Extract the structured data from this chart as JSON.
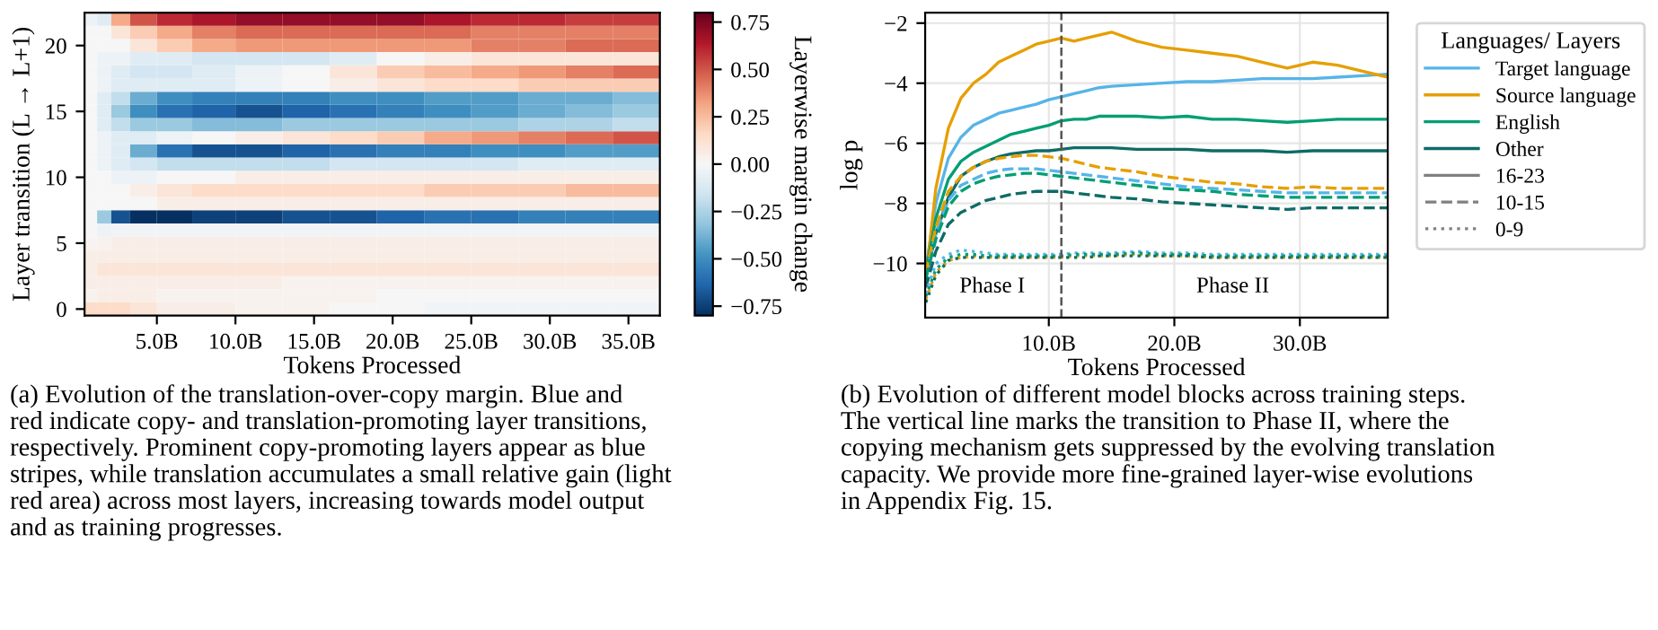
{
  "chart_data": [
    {
      "type": "heatmap",
      "xlabel": "Tokens Processed",
      "ylabel": "Layer transition (L → L+1)",
      "clabel": "Layerwise margin change",
      "x": [
        0.8,
        1.6,
        2.6,
        4,
        6,
        8.5,
        11.5,
        14.5,
        17.5,
        20.5,
        23.5,
        26.5,
        29.5,
        32.5,
        35.5
      ],
      "xlim": [
        0.4,
        37
      ],
      "xticks": [
        {
          "value": 5,
          "label": "5.0B"
        },
        {
          "value": 10,
          "label": "10.0B"
        },
        {
          "value": 15,
          "label": "15.0B"
        },
        {
          "value": 20,
          "label": "20.0B"
        },
        {
          "value": 25,
          "label": "25.0B"
        },
        {
          "value": 30,
          "label": "30.0B"
        },
        {
          "value": 35,
          "label": "35.0B"
        }
      ],
      "y_categories": [
        null,
        null,
        "20",
        null,
        null,
        null,
        null,
        "15",
        null,
        null,
        null,
        null,
        "10",
        null,
        null,
        null,
        null,
        "5",
        null,
        null,
        null,
        null,
        "0"
      ],
      "cells": [
        [
          -0.05,
          -0.1,
          0.3,
          0.5,
          0.6,
          0.65,
          0.7,
          0.7,
          0.7,
          0.7,
          0.65,
          0.6,
          0.6,
          0.55,
          0.55
        ],
        [
          0,
          0,
          0.1,
          0.2,
          0.3,
          0.4,
          0.45,
          0.45,
          0.45,
          0.45,
          0.45,
          0.4,
          0.4,
          0.4,
          0.4
        ],
        [
          0,
          0,
          0,
          0.1,
          0.2,
          0.3,
          0.35,
          0.35,
          0.35,
          0.35,
          0.35,
          0.4,
          0.4,
          0.45,
          0.45
        ],
        [
          0,
          -0.05,
          -0.05,
          -0.1,
          -0.1,
          -0.15,
          -0.15,
          -0.15,
          -0.1,
          0,
          0.05,
          0.1,
          0.1,
          0.1,
          0.1
        ],
        [
          0,
          -0.05,
          -0.1,
          -0.15,
          -0.15,
          -0.1,
          -0.05,
          0,
          0.1,
          0.2,
          0.25,
          0.3,
          0.35,
          0.4,
          0.45
        ],
        [
          0,
          -0.05,
          -0.1,
          -0.1,
          -0.1,
          -0.1,
          -0.05,
          0,
          0.05,
          0.1,
          0.15,
          0.15,
          0.2,
          0.2,
          0.2
        ],
        [
          0,
          -0.1,
          -0.2,
          -0.4,
          -0.5,
          -0.55,
          -0.55,
          -0.55,
          -0.5,
          -0.5,
          -0.45,
          -0.45,
          -0.4,
          -0.4,
          -0.35
        ],
        [
          0,
          -0.1,
          -0.3,
          -0.5,
          -0.6,
          -0.65,
          -0.7,
          -0.65,
          -0.6,
          -0.55,
          -0.5,
          -0.45,
          -0.4,
          -0.35,
          -0.3
        ],
        [
          0,
          -0.1,
          -0.2,
          -0.3,
          -0.3,
          -0.35,
          -0.35,
          -0.3,
          -0.3,
          -0.3,
          -0.3,
          -0.3,
          -0.25,
          -0.25,
          -0.2
        ],
        [
          0,
          -0.05,
          -0.1,
          -0.1,
          -0.05,
          0,
          0.05,
          0.1,
          0.15,
          0.2,
          0.3,
          0.35,
          0.4,
          0.45,
          0.5
        ],
        [
          0,
          -0.05,
          -0.1,
          -0.4,
          -0.6,
          -0.7,
          -0.7,
          -0.65,
          -0.6,
          -0.55,
          -0.55,
          -0.5,
          -0.5,
          -0.45,
          -0.45
        ],
        [
          0,
          -0.05,
          -0.1,
          -0.15,
          -0.2,
          -0.2,
          -0.2,
          -0.2,
          -0.15,
          -0.15,
          -0.15,
          -0.15,
          -0.1,
          -0.1,
          -0.1
        ],
        [
          0,
          0,
          -0.05,
          -0.05,
          0,
          0,
          0.05,
          0.05,
          0.05,
          0.05,
          0.05,
          0.05,
          0.05,
          0.05,
          0.05
        ],
        [
          0,
          0,
          0,
          0.05,
          0.1,
          0.15,
          0.15,
          0.15,
          0.15,
          0.15,
          0.2,
          0.2,
          0.2,
          0.25,
          0.25
        ],
        [
          0,
          0,
          0,
          0,
          0.05,
          0.05,
          0.05,
          0.05,
          0.05,
          0.05,
          0.05,
          0.05,
          0.05,
          0.05,
          0.05
        ],
        [
          0,
          -0.3,
          -0.7,
          -0.8,
          -0.8,
          -0.75,
          -0.75,
          -0.7,
          -0.7,
          -0.65,
          -0.6,
          -0.6,
          -0.55,
          -0.55,
          -0.55
        ],
        [
          0,
          -0.05,
          -0.03,
          -0.03,
          -0.03,
          -0.03,
          -0.03,
          -0.03,
          -0.03,
          -0.03,
          -0.03,
          -0.03,
          -0.03,
          -0.03,
          -0.03
        ],
        [
          0.02,
          0.03,
          0.05,
          0.05,
          0.05,
          0.05,
          0.05,
          0.05,
          0.05,
          0.05,
          0.05,
          0.05,
          0.05,
          0.05,
          0.05
        ],
        [
          0.05,
          0.05,
          0.05,
          0.05,
          0.05,
          0.05,
          0.05,
          0.05,
          0.05,
          0.05,
          0.05,
          0.05,
          0.05,
          0.05,
          0.05
        ],
        [
          0.05,
          0.1,
          0.1,
          0.1,
          0.1,
          0.1,
          0.1,
          0.1,
          0.1,
          0.1,
          0.1,
          0.1,
          0.1,
          0.1,
          0.1
        ],
        [
          0.05,
          0.05,
          0.05,
          0.05,
          0.05,
          0.05,
          0.05,
          0.03,
          0.03,
          0.03,
          0.03,
          0.03,
          0.03,
          0.03,
          0.03
        ],
        [
          0.03,
          0.05,
          0.05,
          0.05,
          0.03,
          0.03,
          0.03,
          0.03,
          0.03,
          0,
          0,
          0,
          0,
          0,
          0
        ],
        [
          0.15,
          0.15,
          0.15,
          0.1,
          0.05,
          0.05,
          0.03,
          0.03,
          0,
          0,
          -0.03,
          -0.03,
          -0.03,
          -0.03,
          -0.03
        ]
      ],
      "clim": [
        -0.8,
        0.8
      ],
      "cticks": [
        {
          "value": -0.75,
          "label": "−0.75"
        },
        {
          "value": -0.5,
          "label": "−0.50"
        },
        {
          "value": -0.25,
          "label": "−0.25"
        },
        {
          "value": 0,
          "label": "0.00"
        },
        {
          "value": 0.25,
          "label": "0.25"
        },
        {
          "value": 0.5,
          "label": "0.50"
        },
        {
          "value": 0.75,
          "label": "0.75"
        }
      ],
      "annotations": [
        "(a) Evolution of the translation-over-copy margin. Blue and\nred indicate copy- and translation-promoting layer transitions,\nrespectively. Prominent copy-promoting layers appear as blue\nstripes, while translation accumulates a small relative gain (light\nred area) across most layers, increasing towards model output\nand as training progresses."
      ]
    },
    {
      "type": "line",
      "xlabel": "Tokens Processed",
      "ylabel": "log p",
      "legend_title": "Languages/ Layers",
      "legend": "right",
      "grid": true,
      "x": [
        0.2,
        1,
        2,
        3,
        4,
        5,
        6,
        7,
        8,
        9,
        10,
        11,
        12,
        13,
        14,
        15,
        17,
        19,
        21,
        23,
        25,
        27,
        29,
        31,
        33,
        35,
        37
      ],
      "xlim": [
        0.15,
        37
      ],
      "xticks": [
        {
          "value": 10,
          "label": "10.0B"
        },
        {
          "value": 20,
          "label": "20.0B"
        },
        {
          "value": 30,
          "label": "30.0B"
        }
      ],
      "ylim": [
        -11.8,
        -1.65
      ],
      "yticks": [
        {
          "value": -10,
          "label": "−10"
        },
        {
          "value": -8,
          "label": "−8"
        },
        {
          "value": -6,
          "label": "−6"
        },
        {
          "value": -4,
          "label": "−4"
        },
        {
          "value": -2,
          "label": "−2"
        }
      ],
      "series": [
        {
          "name": "Target language",
          "color": "#56b4e9",
          "line_style": "solid",
          "values": [
            -10.2,
            -8,
            -6.5,
            -5.8,
            -5.4,
            -5.2,
            -5,
            -4.9,
            -4.8,
            -4.7,
            -4.55,
            -4.45,
            -4.35,
            -4.25,
            -4.15,
            -4.1,
            -4.05,
            -4,
            -3.95,
            -3.95,
            -3.9,
            -3.85,
            -3.85,
            -3.85,
            -3.8,
            -3.75,
            -3.7
          ]
        },
        {
          "name": "Source language",
          "color": "#e69f00",
          "line_style": "solid",
          "values": [
            -10.5,
            -7.5,
            -5.5,
            -4.5,
            -4,
            -3.7,
            -3.3,
            -3.1,
            -2.9,
            -2.7,
            -2.6,
            -2.5,
            -2.6,
            -2.5,
            -2.4,
            -2.3,
            -2.6,
            -2.8,
            -2.9,
            -3,
            -3.1,
            -3.3,
            -3.5,
            -3.3,
            -3.4,
            -3.6,
            -3.8
          ]
        },
        {
          "name": "English",
          "color": "#009e73",
          "line_style": "solid",
          "values": [
            -10.3,
            -8.5,
            -7.2,
            -6.6,
            -6.3,
            -6.1,
            -5.9,
            -5.7,
            -5.6,
            -5.5,
            -5.4,
            -5.25,
            -5.2,
            -5.2,
            -5.1,
            -5.1,
            -5.1,
            -5.15,
            -5.1,
            -5.2,
            -5.2,
            -5.25,
            -5.3,
            -5.25,
            -5.2,
            -5.2,
            -5.2
          ]
        },
        {
          "name": "Other",
          "color": "#0e6b66",
          "line_style": "solid",
          "values": [
            -10.5,
            -9,
            -7.8,
            -7.1,
            -6.8,
            -6.6,
            -6.45,
            -6.35,
            -6.3,
            -6.25,
            -6.25,
            -6.2,
            -6.15,
            -6.15,
            -6.15,
            -6.15,
            -6.2,
            -6.2,
            -6.2,
            -6.25,
            -6.25,
            -6.25,
            -6.3,
            -6.25,
            -6.25,
            -6.25,
            -6.25
          ]
        },
        {
          "color": "#56b4e9",
          "line_style": "dashed",
          "values": [
            -10.4,
            -9,
            -7.9,
            -7.4,
            -7.2,
            -7,
            -6.9,
            -6.85,
            -6.85,
            -6.85,
            -6.9,
            -6.95,
            -7,
            -7.05,
            -7.1,
            -7.15,
            -7.25,
            -7.35,
            -7.45,
            -7.5,
            -7.55,
            -7.6,
            -7.65,
            -7.65,
            -7.65,
            -7.65,
            -7.65
          ]
        },
        {
          "color": "#e69f00",
          "line_style": "dashed",
          "values": [
            -10.3,
            -8.8,
            -7.6,
            -7.1,
            -6.8,
            -6.6,
            -6.5,
            -6.45,
            -6.4,
            -6.4,
            -6.45,
            -6.5,
            -6.6,
            -6.7,
            -6.8,
            -6.85,
            -6.95,
            -7.1,
            -7.2,
            -7.3,
            -7.35,
            -7.45,
            -7.5,
            -7.45,
            -7.5,
            -7.5,
            -7.5
          ]
        },
        {
          "color": "#009e73",
          "line_style": "dashed",
          "values": [
            -10.5,
            -9.2,
            -8.1,
            -7.6,
            -7.35,
            -7.2,
            -7.1,
            -7.05,
            -7,
            -7,
            -7.05,
            -7.1,
            -7.15,
            -7.2,
            -7.25,
            -7.3,
            -7.4,
            -7.5,
            -7.55,
            -7.6,
            -7.7,
            -7.75,
            -7.8,
            -7.8,
            -7.8,
            -7.8,
            -7.8
          ]
        },
        {
          "color": "#0e6b66",
          "line_style": "dashed",
          "values": [
            -10.8,
            -9.6,
            -8.7,
            -8.3,
            -8.1,
            -7.9,
            -7.8,
            -7.7,
            -7.65,
            -7.6,
            -7.6,
            -7.6,
            -7.65,
            -7.7,
            -7.75,
            -7.8,
            -7.85,
            -7.95,
            -8,
            -8.05,
            -8.1,
            -8.15,
            -8.2,
            -8.15,
            -8.15,
            -8.15,
            -8.15
          ]
        },
        {
          "color": "#56b4e9",
          "line_style": "dotted",
          "values": [
            -11,
            -10,
            -9.7,
            -9.55,
            -9.6,
            -9.65,
            -9.7,
            -9.7,
            -9.7,
            -9.7,
            -9.7,
            -9.7,
            -9.65,
            -9.65,
            -9.65,
            -9.65,
            -9.6,
            -9.65,
            -9.65,
            -9.7,
            -9.7,
            -9.7,
            -9.7,
            -9.7,
            -9.7,
            -9.7,
            -9.7
          ]
        },
        {
          "color": "#e69f00",
          "line_style": "dotted",
          "values": [
            -11.2,
            -10.3,
            -9.9,
            -9.8,
            -9.75,
            -9.8,
            -9.8,
            -9.8,
            -9.8,
            -9.8,
            -9.8,
            -9.8,
            -9.75,
            -9.75,
            -9.75,
            -9.75,
            -9.7,
            -9.75,
            -9.75,
            -9.8,
            -9.8,
            -9.8,
            -9.8,
            -9.8,
            -9.8,
            -9.8,
            -9.8
          ]
        },
        {
          "color": "#009e73",
          "line_style": "dotted",
          "values": [
            -11.1,
            -10.2,
            -9.8,
            -9.7,
            -9.7,
            -9.75,
            -9.75,
            -9.75,
            -9.75,
            -9.75,
            -9.75,
            -9.75,
            -9.7,
            -9.7,
            -9.7,
            -9.7,
            -9.65,
            -9.7,
            -9.7,
            -9.75,
            -9.75,
            -9.75,
            -9.75,
            -9.75,
            -9.75,
            -9.75,
            -9.75
          ]
        },
        {
          "color": "#0e6b66",
          "line_style": "dotted",
          "values": [
            -11.3,
            -10.4,
            -9.9,
            -9.8,
            -9.8,
            -9.8,
            -9.8,
            -9.8,
            -9.8,
            -9.8,
            -9.8,
            -9.8,
            -9.8,
            -9.8,
            -9.75,
            -9.75,
            -9.75,
            -9.75,
            -9.75,
            -9.8,
            -9.8,
            -9.8,
            -9.8,
            -9.8,
            -9.8,
            -9.8,
            -9.8
          ]
        },
        {
          "name": "16-23",
          "color": "#808080",
          "line_style": "solid",
          "values": [
            null,
            null,
            null,
            null,
            null,
            null,
            null,
            null,
            null,
            null,
            null,
            null,
            null,
            null,
            null,
            null,
            null,
            null,
            null,
            null,
            null,
            null,
            null,
            null,
            null,
            null,
            null
          ]
        },
        {
          "name": "10-15",
          "color": "#808080",
          "line_style": "dashed",
          "values": [
            null,
            null,
            null,
            null,
            null,
            null,
            null,
            null,
            null,
            null,
            null,
            null,
            null,
            null,
            null,
            null,
            null,
            null,
            null,
            null,
            null,
            null,
            null,
            null,
            null,
            null,
            null
          ]
        },
        {
          "name": "0-9",
          "color": "#808080",
          "line_style": "dotted",
          "values": [
            null,
            null,
            null,
            null,
            null,
            null,
            null,
            null,
            null,
            null,
            null,
            null,
            null,
            null,
            null,
            null,
            null,
            null,
            null,
            null,
            null,
            null,
            null,
            null,
            null,
            null,
            null
          ]
        }
      ],
      "ref_lines": [
        {
          "axis": "x",
          "value": 11,
          "color": "#555555",
          "line_style": "dashed"
        }
      ],
      "annotations": [
        "Phase I",
        "Phase II",
        "(b) Evolution of different model blocks across training steps.\nThe vertical line marks the transition to Phase II, where the\ncopying mechanism gets suppressed by the evolving translation\ncapacity. We provide more fine-grained layer-wise evolutions\nin Appendix Fig. 15."
      ]
    }
  ]
}
